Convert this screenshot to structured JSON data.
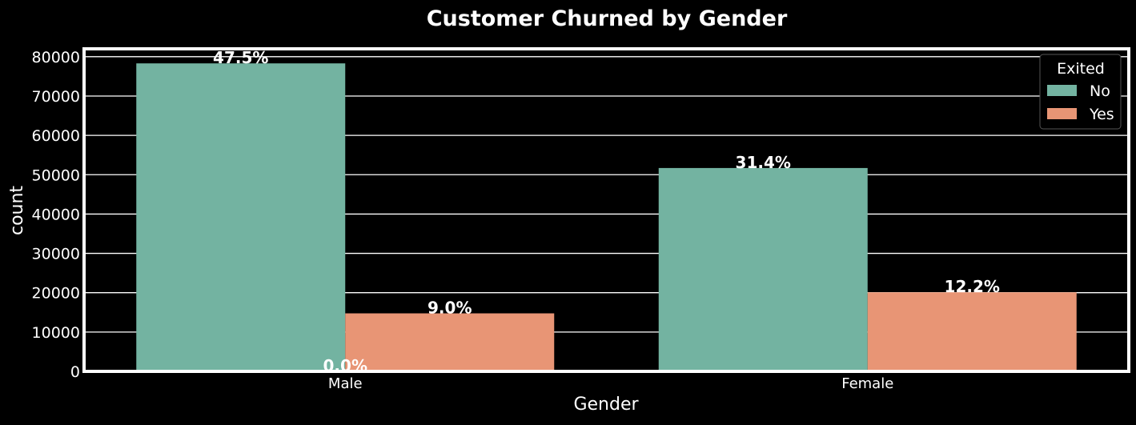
{
  "chart_data": {
    "type": "bar",
    "title": "Customer Churned by Gender",
    "xlabel": "Gender",
    "ylabel": "count",
    "categories": [
      "Male",
      "Female"
    ],
    "series": [
      {
        "name": "No",
        "values": [
          78300,
          51700
        ],
        "labels": [
          "47.5%",
          "31.4%"
        ],
        "color": "#73b3a1"
      },
      {
        "name": "Yes",
        "values": [
          14750,
          20100
        ],
        "labels": [
          "9.0%",
          "12.2%"
        ],
        "color": "#e89575"
      }
    ],
    "extra_annotations": [
      {
        "text": "0.0%",
        "x": 0,
        "y": 0
      }
    ],
    "ylim": [
      0,
      82000
    ],
    "yticks": [
      0,
      10000,
      20000,
      30000,
      40000,
      50000,
      60000,
      70000,
      80000
    ],
    "legend": {
      "title": "Exited",
      "position": "top-right"
    },
    "grid": true,
    "colors": {
      "background": "#000000",
      "axes_frame": "#ffffff",
      "grid": "#ffffff",
      "text": "#ffffff"
    }
  }
}
